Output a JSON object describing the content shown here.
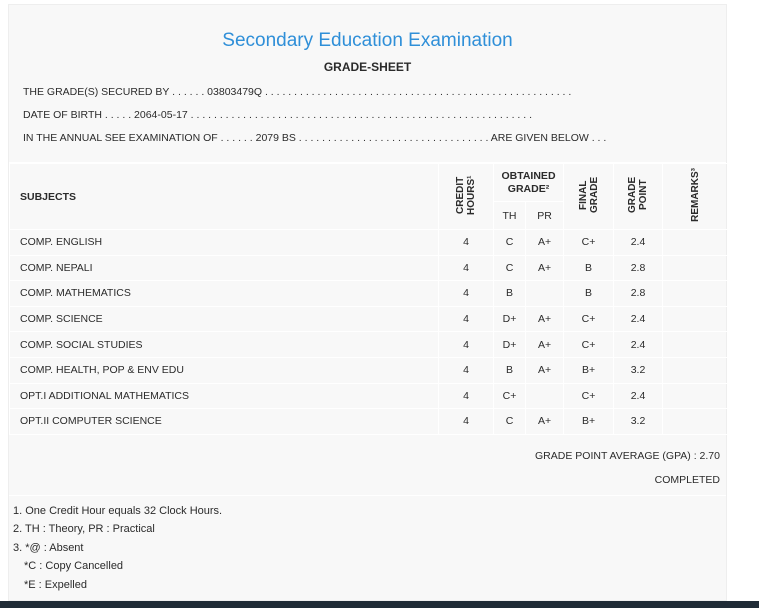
{
  "title": "Secondary Education Examination",
  "subtitle": "GRADE-SHEET",
  "info": {
    "secured": "THE GRADE(S) SECURED BY . . . . . . 03803479Q . . . . . . . . . . . . . . . . . . . . . . . . . . . . . . . . . . . . . . . . . . . . . . . . . . . . .",
    "dob": "DATE OF BIRTH . . . . . 2064-05-17 . . . . . . . . . . . . . . . . . . . . . . . . . . . . . . . . . . . . . . . . . . . . . . . . . . . . . . . . . . .",
    "exam": "IN THE ANNUAL SEE EXAMINATION OF . . . . . . 2079 BS . . . . . . . . . . . . . . . . . . . . . . . . . . . . . . . . . ARE GIVEN BELOW . . ."
  },
  "table": {
    "headers": {
      "subjects": "SUBJECTS",
      "credit": "CREDIT HOURS¹",
      "obtained": "OBTAINED GRADE²",
      "th": "TH",
      "pr": "PR",
      "final": "FINAL GRADE",
      "point": "GRADE POINT",
      "remarks": "REMARKS³"
    },
    "rows": [
      [
        "COMP. ENGLISH",
        "4",
        "C",
        "A+",
        "C+",
        "2.4",
        ""
      ],
      [
        "COMP. NEPALI",
        "4",
        "C",
        "A+",
        "B",
        "2.8",
        ""
      ],
      [
        "COMP. MATHEMATICS",
        "4",
        "B",
        "",
        "B",
        "2.8",
        ""
      ],
      [
        "COMP. SCIENCE",
        "4",
        "D+",
        "A+",
        "C+",
        "2.4",
        ""
      ],
      [
        "COMP. SOCIAL STUDIES",
        "4",
        "D+",
        "A+",
        "C+",
        "2.4",
        ""
      ],
      [
        "COMP. HEALTH, POP & ENV EDU",
        "4",
        "B",
        "A+",
        "B+",
        "3.2",
        ""
      ],
      [
        "OPT.I ADDITIONAL MATHEMATICS",
        "4",
        "C+",
        "",
        "C+",
        "2.4",
        ""
      ],
      [
        "OPT.II COMPUTER SCIENCE",
        "4",
        "C",
        "A+",
        "B+",
        "3.2",
        ""
      ]
    ]
  },
  "gpa": "GRADE POINT AVERAGE (GPA) : 2.70",
  "status": "COMPLETED",
  "notes": [
    "1. One Credit Hour equals 32 Clock Hours.",
    "2. TH : Theory, PR : Practical",
    "3. *@ : Absent",
    "*C : Copy Cancelled",
    "*E : Expelled"
  ]
}
